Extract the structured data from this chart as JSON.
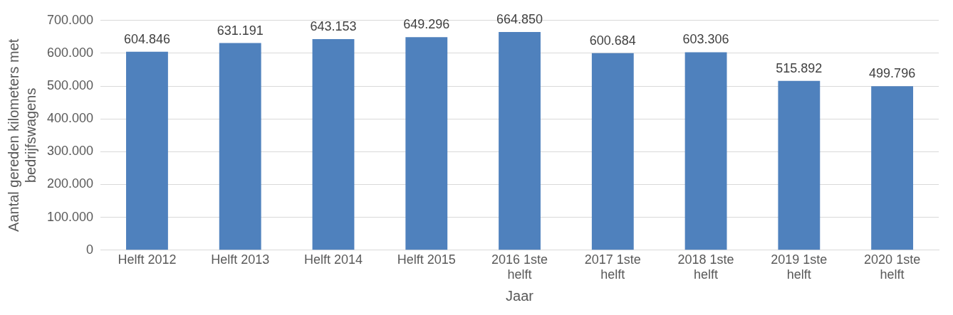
{
  "chart_data": {
    "type": "bar",
    "xlabel": "Jaar",
    "ylabel": "Aantal gereden kilometers met bedrijfswagens",
    "categories": [
      "Helft 2012",
      "Helft 2013",
      "Helft 2014",
      "Helft 2015",
      "2016 1ste helft",
      "2017 1ste helft",
      "2018 1ste helft",
      "2019 1ste helft",
      "2020 1ste helft"
    ],
    "values": [
      604846,
      631191,
      643153,
      649296,
      664850,
      600684,
      603306,
      515892,
      499796
    ],
    "value_labels": [
      "604.846",
      "631.191",
      "643.153",
      "649.296",
      "664.850",
      "600.684",
      "603.306",
      "515.892",
      "499.796"
    ],
    "color": "#4f81bd",
    "ylim": [
      0,
      700000
    ],
    "yticks": [
      0,
      {
        "value": 100000,
        "label": "100.000"
      },
      {
        "value": 200000,
        "label": "200.000"
      },
      {
        "value": 300000,
        "label": "300.000"
      },
      {
        "value": 400000,
        "label": "400.000"
      },
      {
        "value": 500000,
        "label": "500.000"
      },
      {
        "value": 600000,
        "label": "600.000"
      },
      {
        "value": 700000,
        "label": "700.000"
      }
    ],
    "grid": "y",
    "legend": false
  }
}
